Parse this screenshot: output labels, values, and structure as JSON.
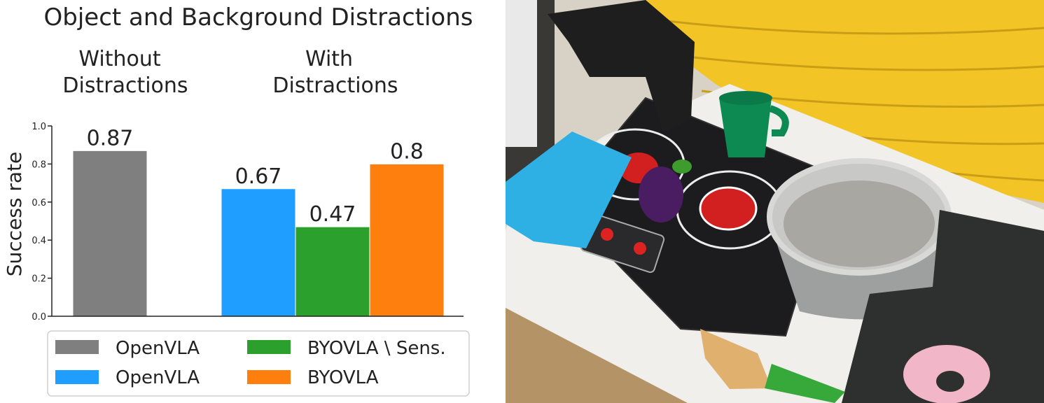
{
  "chart_data": {
    "type": "bar",
    "title": "Object and Background Distractions",
    "groups": [
      {
        "label": "Without Distractions",
        "lines": [
          "Without",
          "Distractions"
        ]
      },
      {
        "label": "With Distractions",
        "lines": [
          "With",
          "Distractions"
        ]
      }
    ],
    "bars": [
      {
        "group": 0,
        "series": 0,
        "value": 0.87,
        "label": "0.87"
      },
      {
        "group": 1,
        "series": 1,
        "value": 0.67,
        "label": "0.67"
      },
      {
        "group": 1,
        "series": 2,
        "value": 0.47,
        "label": "0.47"
      },
      {
        "group": 1,
        "series": 3,
        "value": 0.8,
        "label": "0.8"
      }
    ],
    "series": [
      {
        "name": "OpenVLA",
        "color": "#7f7f7f"
      },
      {
        "name": "OpenVLA",
        "color": "#1f9eff"
      },
      {
        "name": "BYOVLA \\ Sens.",
        "color": "#2ca02c"
      },
      {
        "name": "BYOVLA",
        "color": "#ff7f0e"
      }
    ],
    "ylabel": "Success rate",
    "xlabel": "",
    "ylim": [
      0,
      1.0
    ],
    "yticks": [
      "0.0",
      "0.2",
      "0.4",
      "0.6",
      "0.8",
      "1.0"
    ],
    "grid": false,
    "legend_position": "bottom"
  },
  "photo": {
    "icon": "robot-kitchen-scene-photo"
  }
}
